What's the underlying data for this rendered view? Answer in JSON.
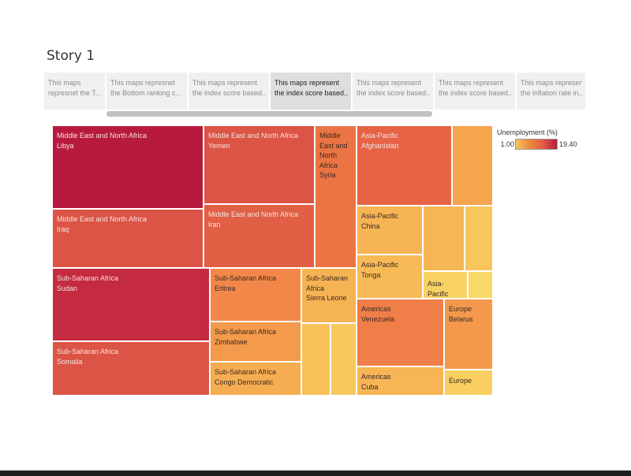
{
  "story": {
    "title": "Story 1"
  },
  "nav": {
    "points": [
      {
        "line1": "This maps",
        "line2": "represnet the  T..."
      },
      {
        "line1": "This maps represnet",
        "line2": "the Bottom ranking c..."
      },
      {
        "line1": "This maps represent",
        "line2": "the index score based..."
      },
      {
        "line1": "This maps represent",
        "line2": "the index score based..."
      },
      {
        "line1": "This maps represent",
        "line2": "the index score based..."
      },
      {
        "line1": "This maps represent",
        "line2": "the index score based..."
      },
      {
        "line1": "This maps represent",
        "line2": "the inflation rate in..."
      }
    ],
    "active_index": 3
  },
  "legend": {
    "title": "Unemployment (%)",
    "min": "1.00",
    "max": "19.40"
  },
  "tiles": [
    {
      "region": "Middle East and North Africa",
      "country": "Libya",
      "color": "#b81a3e"
    },
    {
      "region": "Middle East and North Africa",
      "country": "Iraq",
      "color": "#dc5446"
    },
    {
      "region": "Middle East and North Africa",
      "country": "Yemen",
      "color": "#dc5446"
    },
    {
      "region": "Middle East and North Africa",
      "country": "Iran",
      "color": "#e05f45"
    },
    {
      "region": "Middle East and North Africa",
      "country": "Syria",
      "color": "#ea7444"
    },
    {
      "region": "Asia-Pacific",
      "country": "Afghanistan",
      "color": "#e76346"
    },
    {
      "region": "",
      "country": "",
      "color": "#f5a54e"
    },
    {
      "region": "Asia-Pacific",
      "country": "China",
      "color": "#f7b454"
    },
    {
      "region": "",
      "country": "",
      "color": "#f6b656"
    },
    {
      "region": "",
      "country": "",
      "color": "#f7c65c"
    },
    {
      "region": "Asia-Pacific",
      "country": "Tonga",
      "color": "#f7ba57"
    },
    {
      "region": "Asia-Pacific",
      "country": "",
      "color": "#f8d264"
    },
    {
      "region": "",
      "country": "",
      "color": "#f9d866"
    },
    {
      "region": "Sub-Saharan Africa",
      "country": "Sudan",
      "color": "#c42a40"
    },
    {
      "region": "Sub-Saharan Africa",
      "country": "Somalia",
      "color": "#dc5446"
    },
    {
      "region": "Sub-Saharan Africa",
      "country": "Eritrea",
      "color": "#f3874a"
    },
    {
      "region": "Sub-Saharan Africa",
      "country": "Zimbabwe",
      "color": "#f49a4d"
    },
    {
      "region": "Sub-Saharan Africa",
      "country": "Congo Democratic",
      "color": "#f6ad52"
    },
    {
      "region": "Sub-Saharan Africa",
      "country": "Sierra Leone",
      "color": "#f6b354"
    },
    {
      "region": "",
      "country": "",
      "color": "#f7c25a"
    },
    {
      "region": "",
      "country": "",
      "color": "#f8c75d"
    },
    {
      "region": "Americas",
      "country": "Venezuela",
      "color": "#ef7e48"
    },
    {
      "region": "Americas",
      "country": "Cuba",
      "color": "#f7b556"
    },
    {
      "region": "Europe",
      "country": "Belarus",
      "color": "#f4984c"
    },
    {
      "region": "Europe",
      "country": "",
      "color": "#f8cf60"
    }
  ]
}
